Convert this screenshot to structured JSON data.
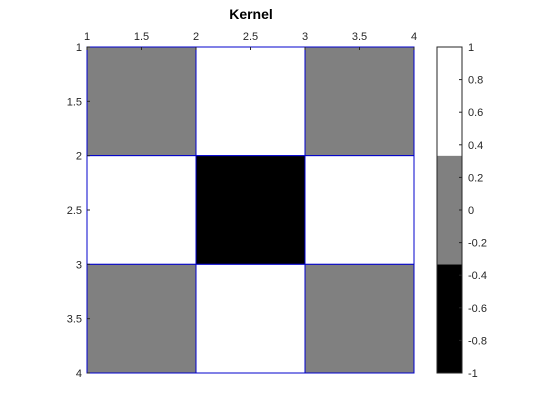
{
  "chart_data": {
    "type": "heatmap",
    "title": "Kernel",
    "xlabel": "",
    "ylabel": "",
    "x_ticks": [
      "1",
      "1.5",
      "2",
      "2.5",
      "3",
      "3.5",
      "4"
    ],
    "y_ticks": [
      "1",
      "1.5",
      "2",
      "2.5",
      "3",
      "3.5",
      "4"
    ],
    "xlim": [
      1,
      4
    ],
    "ylim": [
      1,
      4
    ],
    "x_axis_location": "top",
    "y_direction": "reverse",
    "cell_edges": [
      1,
      2,
      3,
      4
    ],
    "values": [
      [
        0,
        1,
        0
      ],
      [
        1,
        -1,
        1
      ],
      [
        0,
        1,
        0
      ]
    ],
    "grid_line_color": "#0000cc",
    "colormap": [
      {
        "min": -1,
        "max": -0.333,
        "color": "#000000"
      },
      {
        "min": -0.333,
        "max": 0.333,
        "color": "#808080"
      },
      {
        "min": 0.333,
        "max": 1,
        "color": "#ffffff"
      }
    ],
    "colorbar": {
      "location": "right",
      "lim": [
        -1,
        1
      ],
      "ticks": [
        "1",
        "0.8",
        "0.6",
        "0.4",
        "0.2",
        "0",
        "-0.2",
        "-0.4",
        "-0.6",
        "-0.8",
        "-1"
      ]
    }
  }
}
